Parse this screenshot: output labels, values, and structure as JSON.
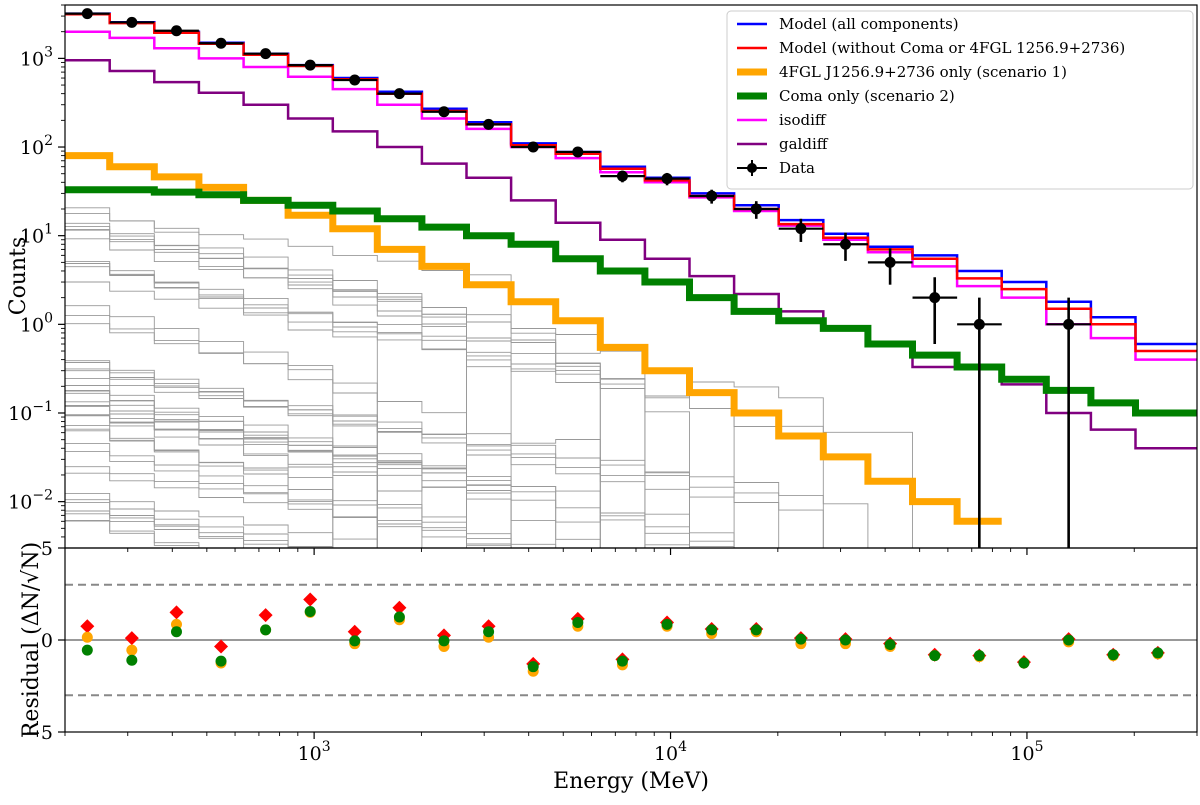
{
  "chart_data": {
    "type": "line",
    "xlabel": "Energy (MeV)",
    "top_panel": {
      "ylabel": "Counts",
      "yscale": "log",
      "ylim": [
        0.003,
        4000
      ],
      "xlim": [
        200,
        300000
      ],
      "xscale": "log",
      "bin_edges": [
        200,
        267,
        356,
        475,
        634,
        845,
        1128,
        1504,
        2006,
        2676,
        3570,
        4762,
        6352,
        8474,
        11304,
        15080,
        20116,
        26833,
        35795,
        47749,
        63695,
        84965,
        113340,
        151191,
        201681,
        300000
      ],
      "series": [
        {
          "name": "Model (all components)",
          "color": "#0000ff",
          "width": 2.5,
          "values": [
            3200,
            2550,
            2000,
            1500,
            1130,
            840,
            600,
            420,
            270,
            190,
            110,
            88,
            60,
            45,
            30,
            22,
            15,
            10.5,
            7.5,
            6.0,
            4.0,
            3.0,
            1.8,
            1.2,
            0.6
          ]
        },
        {
          "name": "Model (without Coma or 4FGL 1256.9+2736)",
          "color": "#ff0000",
          "width": 2.5,
          "values": [
            3150,
            2500,
            1950,
            1460,
            1100,
            820,
            580,
            400,
            255,
            180,
            105,
            84,
            57,
            42,
            28,
            20,
            13.5,
            9.5,
            7.0,
            5.5,
            3.3,
            2.5,
            1.5,
            1.0,
            0.5
          ]
        },
        {
          "name": "4FGL J1256.9+2736 only (scenario 1)",
          "color": "#ffa500",
          "width": 7,
          "values": [
            80,
            60,
            46,
            35,
            25,
            17,
            12,
            7.0,
            4.5,
            2.8,
            1.8,
            1.1,
            0.55,
            0.3,
            0.17,
            0.1,
            0.055,
            0.032,
            0.017,
            0.01,
            0.006
          ]
        },
        {
          "name": "Coma only (scenario 2)",
          "color": "#008000",
          "width": 7,
          "values": [
            33,
            33,
            31,
            29,
            25,
            22,
            19,
            15.5,
            12.5,
            10,
            8,
            5.5,
            4.0,
            3.0,
            2.0,
            1.4,
            1.1,
            0.9,
            0.6,
            0.45,
            0.33,
            0.24,
            0.18,
            0.13,
            0.1
          ]
        },
        {
          "name": "isodiff",
          "color": "#ff00ff",
          "width": 2.5,
          "values": [
            2000,
            1700,
            1300,
            1000,
            800,
            620,
            450,
            300,
            210,
            160,
            100,
            75,
            52,
            40,
            27,
            19,
            13,
            9,
            6.5,
            4.5,
            2.7,
            2.0,
            1.0,
            0.7,
            0.4
          ]
        },
        {
          "name": "galdiff",
          "color": "#800080",
          "width": 2.5,
          "values": [
            950,
            720,
            540,
            410,
            300,
            210,
            150,
            100,
            65,
            45,
            25,
            14,
            9,
            5.5,
            3.5,
            2.2,
            1.4,
            0.95,
            0.6,
            0.33,
            0.33,
            0.21,
            0.1,
            0.065,
            0.04
          ]
        }
      ],
      "faint_sources": {
        "color": "#999999",
        "count": 44,
        "description": "other point sources",
        "start_max": 27,
        "start_min": 0.006
      },
      "data": {
        "name": "Data",
        "color": "#000000",
        "points": [
          {
            "x": 231,
            "y": 3200,
            "yerr": 55
          },
          {
            "x": 308,
            "y": 2550,
            "yerr": 50
          },
          {
            "x": 411,
            "y": 2050,
            "yerr": 45
          },
          {
            "x": 548,
            "y": 1480,
            "yerr": 38
          },
          {
            "x": 731,
            "y": 1130,
            "yerr": 34
          },
          {
            "x": 975,
            "y": 840,
            "yerr": 29
          },
          {
            "x": 1300,
            "y": 570,
            "yerr": 24
          },
          {
            "x": 1735,
            "y": 400,
            "yerr": 20
          },
          {
            "x": 2314,
            "y": 250,
            "yerr": 16
          },
          {
            "x": 3087,
            "y": 180,
            "yerr": 13
          },
          {
            "x": 4118,
            "y": 100,
            "yerr": 10
          },
          {
            "x": 5494,
            "y": 88,
            "yerr": 9
          },
          {
            "x": 7329,
            "y": 47,
            "yerr": 7
          },
          {
            "x": 9777,
            "y": 44,
            "yerr": 7
          },
          {
            "x": 13043,
            "y": 28,
            "yerr": 5
          },
          {
            "x": 17400,
            "y": 20,
            "yerr": 4.5
          },
          {
            "x": 23212,
            "y": 12,
            "yerr": 3.5
          },
          {
            "x": 30965,
            "y": 8,
            "yerr": 2.8
          },
          {
            "x": 41310,
            "y": 5,
            "yerr": 2.2
          },
          {
            "x": 55110,
            "y": 2,
            "yerr": 1.4
          },
          {
            "x": 73520,
            "y": 1,
            "yerr": 1.0
          },
          {
            "x": 130910,
            "y": 1,
            "yerr": 1.0
          }
        ]
      },
      "yticks": [
        {
          "value": 0.01,
          "label": "10",
          "exp": "−2"
        },
        {
          "value": 0.1,
          "label": "10",
          "exp": "−1"
        },
        {
          "value": 1,
          "label": "10",
          "exp": "0"
        },
        {
          "value": 10,
          "label": "10",
          "exp": "1"
        },
        {
          "value": 100,
          "label": "10",
          "exp": "2"
        },
        {
          "value": 1000,
          "label": "10",
          "exp": "3"
        }
      ]
    },
    "bottom_panel": {
      "ylabel": "Residual (ΔN/√N)",
      "ylim": [
        -5,
        5
      ],
      "yticks": [
        -5,
        0,
        5
      ],
      "reference_lines": [
        3,
        -3
      ],
      "zero_line": 0,
      "x": [
        231,
        308,
        411,
        548,
        731,
        975,
        1300,
        1735,
        2314,
        3087,
        4118,
        5494,
        7329,
        9777,
        13043,
        17400,
        23212,
        30965,
        41310,
        55110,
        73520,
        98080,
        130910,
        174620,
        232940
      ],
      "series": [
        {
          "name": "residual (without Coma or 4FGL)",
          "color": "#ff0000",
          "marker": "diamond",
          "values": [
            0.75,
            0.1,
            1.5,
            -0.35,
            1.35,
            2.2,
            0.45,
            1.75,
            0.25,
            0.75,
            -1.3,
            1.15,
            -1.05,
            0.95,
            0.6,
            0.6,
            0.1,
            0.05,
            -0.2,
            -0.8,
            -0.85,
            -1.2,
            0.05,
            -0.8,
            -0.7
          ]
        },
        {
          "name": "residual (scenario 1)",
          "color": "#ffa500",
          "marker": "circle",
          "values": [
            0.15,
            -0.55,
            0.85,
            -1.25,
            0.55,
            1.5,
            -0.2,
            1.1,
            -0.35,
            0.15,
            -1.7,
            0.75,
            -1.35,
            0.75,
            0.35,
            0.45,
            -0.2,
            -0.2,
            -0.35,
            -0.85,
            -0.9,
            -1.25,
            -0.1,
            -0.85,
            -0.75
          ]
        },
        {
          "name": "residual (scenario 2)",
          "color": "#008000",
          "marker": "circle",
          "values": [
            -0.55,
            -1.1,
            0.45,
            -1.15,
            0.55,
            1.55,
            -0.05,
            1.25,
            -0.05,
            0.45,
            -1.45,
            0.95,
            -1.15,
            0.85,
            0.55,
            0.55,
            0.05,
            0.0,
            -0.25,
            -0.85,
            -0.85,
            -1.25,
            0.0,
            -0.8,
            -0.7
          ]
        }
      ]
    },
    "xticks": [
      {
        "value": 1000,
        "label": "10",
        "exp": "3"
      },
      {
        "value": 10000,
        "label": "10",
        "exp": "4"
      },
      {
        "value": 100000,
        "label": "10",
        "exp": "5"
      }
    ],
    "legend": {
      "placement": "top-right",
      "entries": [
        {
          "label": "Model (all components)",
          "color": "#0000ff",
          "kind": "line"
        },
        {
          "label": "Model (without Coma or 4FGL 1256.9+2736)",
          "color": "#ff0000",
          "kind": "line"
        },
        {
          "label": "4FGL J1256.9+2736 only (scenario 1)",
          "color": "#ffa500",
          "kind": "thick"
        },
        {
          "label": "Coma only (scenario 2)",
          "color": "#008000",
          "kind": "thick"
        },
        {
          "label": "isodiff",
          "color": "#ff00ff",
          "kind": "line"
        },
        {
          "label": "galdiff",
          "color": "#800080",
          "kind": "line"
        },
        {
          "label": "Data",
          "color": "#000000",
          "kind": "errorbar"
        }
      ]
    }
  }
}
